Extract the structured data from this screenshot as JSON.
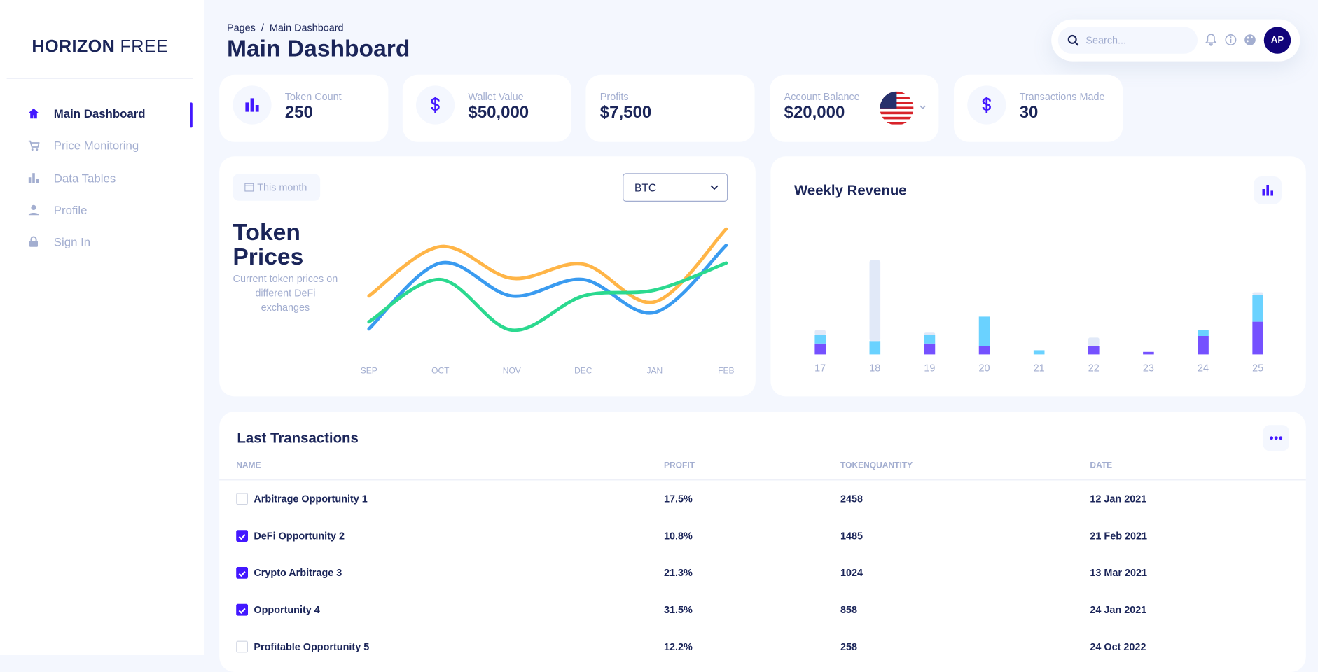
{
  "sidebar": {
    "brand_bold": "HORIZON",
    "brand_light": "FREE",
    "nav": [
      "Main Dashboard",
      "Price Monitoring",
      "Data Tables",
      "Profile",
      "Sign In"
    ]
  },
  "header": {
    "breadcrumb": [
      "Pages",
      "/",
      "Main Dashboard"
    ],
    "title": "Main Dashboard",
    "search_placeholder": "Search...",
    "avatar": "AP"
  },
  "stats": [
    {
      "label": "Token Count",
      "value": "250"
    },
    {
      "label": "Wallet Value",
      "value": "$50,000"
    },
    {
      "label": "Profits",
      "value": "$7,500"
    },
    {
      "label": "Account Balance",
      "value": "$20,000"
    },
    {
      "label": "Transactions Made",
      "value": "30"
    }
  ],
  "token_prices": {
    "button": "This month",
    "select": "BTC",
    "subtitle": "Current token prices on different DeFi exchanges"
  },
  "chart_data": [
    {
      "type": "line",
      "title": "Token Prices",
      "categories": [
        "SEP",
        "OCT",
        "NOV",
        "DEC",
        "JAN",
        "FEB"
      ],
      "ylim": [
        0,
        100
      ],
      "series": [
        {
          "color": "#ffb547",
          "values": [
            34,
            76,
            49,
            61,
            29,
            91
          ]
        },
        {
          "color": "#3a9bf0",
          "values": [
            6,
            62,
            34,
            48,
            20,
            77
          ]
        },
        {
          "color": "#2bd98f",
          "values": [
            12,
            48,
            5,
            34,
            39,
            62
          ]
        }
      ]
    },
    {
      "type": "bar",
      "stacked": true,
      "title": "Weekly Revenue",
      "categories": [
        "17",
        "18",
        "19",
        "20",
        "21",
        "22",
        "23",
        "24",
        "25"
      ],
      "ylim": [
        0,
        120
      ],
      "series": [
        {
          "color": "#7551ff",
          "values": [
            13,
            0,
            13,
            10,
            0,
            10,
            3,
            22,
            39
          ]
        },
        {
          "color": "#6ad2ff",
          "values": [
            10,
            16,
            10,
            35,
            5,
            0,
            0,
            7,
            32
          ]
        },
        {
          "color": "#e1e9f8",
          "values": [
            6,
            96,
            3,
            0,
            0,
            10,
            0,
            0,
            3
          ]
        }
      ]
    }
  ],
  "transactions": {
    "title": "Last Transactions",
    "columns": [
      "NAME",
      "PROFIT",
      "TOKENQUANTITY",
      "DATE"
    ],
    "rows": [
      [
        "Arbitrage Opportunity 1",
        "17.5%",
        "2458",
        "12 Jan 2021"
      ],
      [
        "DeFi Opportunity 2",
        "10.8%",
        "1485",
        "21 Feb 2021"
      ],
      [
        "Crypto Arbitrage 3",
        "21.3%",
        "1024",
        "13 Mar 2021"
      ],
      [
        "Opportunity 4",
        "31.5%",
        "858",
        "24 Jan 2021"
      ],
      [
        "Profitable Opportunity 5",
        "12.2%",
        "258",
        "24 Oct 2022"
      ]
    ],
    "checked": [
      false,
      true,
      true,
      true,
      false
    ]
  }
}
